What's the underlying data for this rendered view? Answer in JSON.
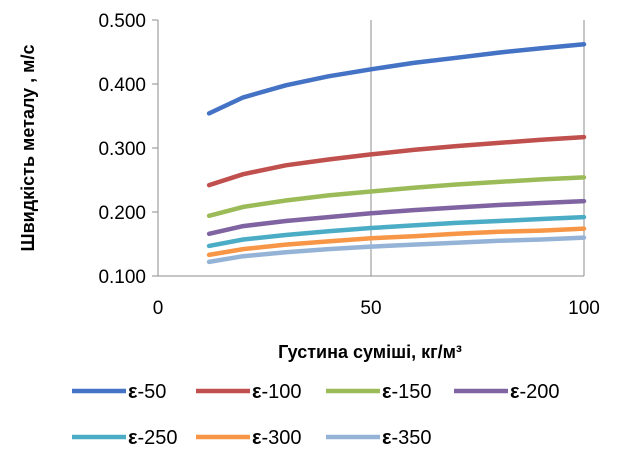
{
  "chart_data": {
    "type": "line",
    "xlabel": "Густина суміші, кг/м³",
    "ylabel": "Швидкість металу , м/с",
    "xlim": [
      0,
      100
    ],
    "ylim": [
      0.1,
      0.5
    ],
    "x_ticks": [
      0,
      50,
      100
    ],
    "x_tick_labels": [
      "0",
      "50",
      "100"
    ],
    "y_ticks": [
      0.1,
      0.2,
      0.3,
      0.4,
      0.5
    ],
    "y_tick_labels": [
      "0.100",
      "0.200",
      "0.300",
      "0.400",
      "0.500"
    ],
    "grid": "vertical",
    "legend_position": "bottom",
    "x": [
      12,
      20,
      30,
      40,
      50,
      60,
      70,
      80,
      90,
      100
    ],
    "series": [
      {
        "name_prefix": "ε",
        "name_suffix": "-50",
        "color": "#4472C4",
        "values": [
          0.354,
          0.379,
          0.398,
          0.412,
          0.423,
          0.433,
          0.441,
          0.449,
          0.456,
          0.462
        ]
      },
      {
        "name_prefix": "ε",
        "name_suffix": "-100",
        "color": "#C0504D",
        "values": [
          0.242,
          0.259,
          0.273,
          0.282,
          0.29,
          0.297,
          0.303,
          0.308,
          0.313,
          0.317
        ]
      },
      {
        "name_prefix": "ε",
        "name_suffix": "-150",
        "color": "#9BBB59",
        "values": [
          0.194,
          0.208,
          0.218,
          0.226,
          0.232,
          0.238,
          0.243,
          0.247,
          0.251,
          0.254
        ]
      },
      {
        "name_prefix": "ε",
        "name_suffix": "-200",
        "color": "#8064A2",
        "values": [
          0.166,
          0.178,
          0.186,
          0.192,
          0.198,
          0.203,
          0.207,
          0.211,
          0.214,
          0.217
        ]
      },
      {
        "name_prefix": "ε",
        "name_suffix": "-250",
        "color": "#4BACC6",
        "values": [
          0.147,
          0.157,
          0.164,
          0.17,
          0.175,
          0.179,
          0.183,
          0.186,
          0.189,
          0.192
        ]
      },
      {
        "name_prefix": "ε",
        "name_suffix": "-300",
        "color": "#F79646",
        "values": [
          0.133,
          0.142,
          0.149,
          0.154,
          0.159,
          0.162,
          0.166,
          0.169,
          0.171,
          0.174
        ]
      },
      {
        "name_prefix": "ε",
        "name_suffix": "-350",
        "color": "#95B3D7",
        "values": [
          0.122,
          0.131,
          0.137,
          0.142,
          0.146,
          0.149,
          0.152,
          0.155,
          0.157,
          0.16
        ]
      }
    ]
  }
}
